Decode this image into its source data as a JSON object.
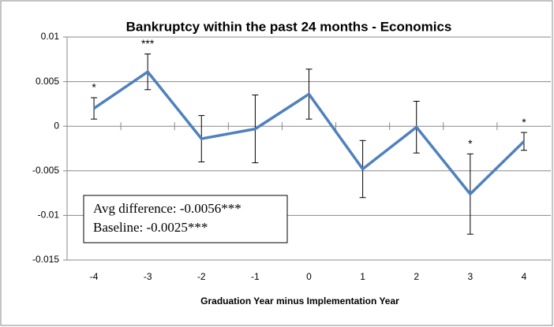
{
  "chart_data": {
    "type": "line",
    "title": "Bankruptcy within the past 24 months - Economics",
    "xlabel": "Graduation Year minus Implementation Year",
    "categories": [
      "-4",
      "-3",
      "-2",
      "-1",
      "0",
      "1",
      "2",
      "3",
      "4"
    ],
    "series": [
      {
        "name": "Economics",
        "color": "#4f81bd",
        "values": [
          0.002,
          0.0061,
          -0.0014,
          -0.0003,
          0.0036,
          -0.0048,
          -0.0001,
          -0.0076,
          -0.0017
        ],
        "errors": [
          0.0012,
          0.002,
          0.0026,
          0.0038,
          0.0028,
          0.0032,
          0.0029,
          0.0045,
          0.001
        ],
        "significance": [
          "*",
          "***",
          null,
          null,
          null,
          null,
          null,
          "*",
          "*"
        ]
      }
    ],
    "ylim": [
      -0.015,
      0.01
    ],
    "yticks": [
      -0.015,
      -0.01,
      -0.005,
      0,
      0.005,
      0.01
    ],
    "grid": true,
    "annotations": [
      "Avg difference:  -0.0056***",
      "Baseline:  -0.0025***"
    ]
  }
}
